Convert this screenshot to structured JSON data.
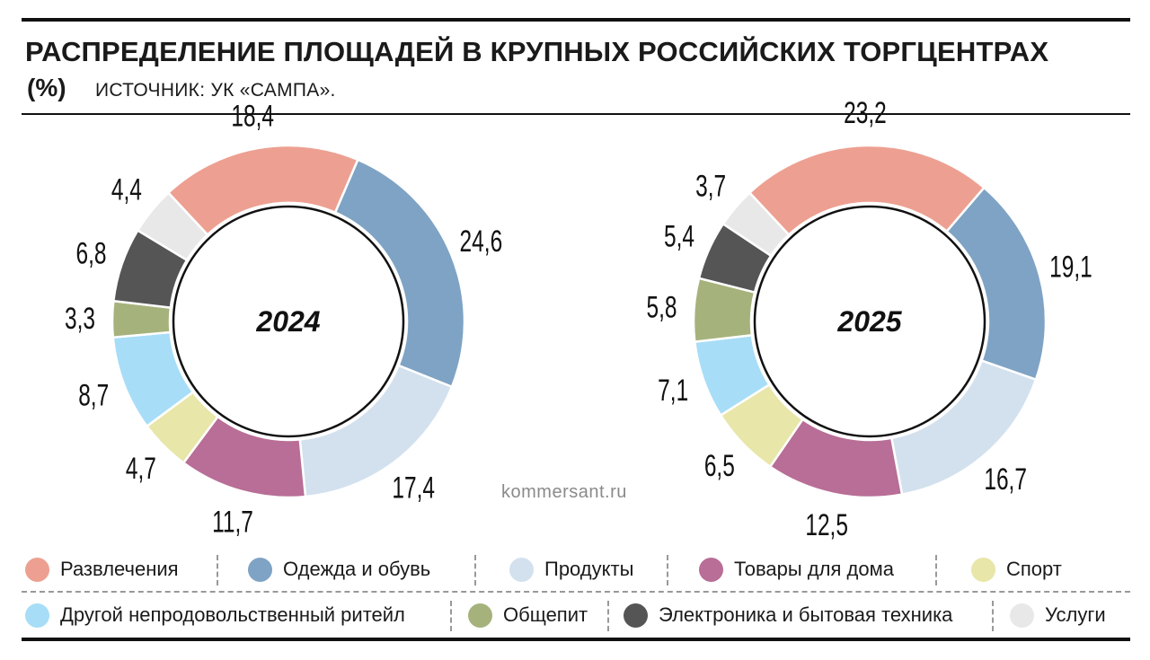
{
  "title": "РАСПРЕДЕЛЕНИЕ ПЛОЩАДЕЙ В КРУПНЫХ РОССИЙСКИХ ТОРГЦЕНТРАХ",
  "unit": "(%)",
  "source": "ИСТОЧНИК: УК «САМПА».",
  "watermark": "kommersant.ru",
  "categories": [
    "Развлечения",
    "Одежда и обувь",
    "Продукты",
    "Товары для дома",
    "Спорт",
    "Другой непродовольственный ритейл",
    "Общепит",
    "Электроника и бытовая техника",
    "Услуги"
  ],
  "colors": [
    "#EDA091",
    "#7FA3C4",
    "#D3E1EE",
    "#B86E96",
    "#E8E6A8",
    "#A7DDF7",
    "#A6B27C",
    "#555555",
    "#E8E8E8"
  ],
  "chart_data": [
    {
      "type": "pie",
      "title": "2024",
      "categories": [
        "Развлечения",
        "Одежда и обувь",
        "Продукты",
        "Товары для дома",
        "Спорт",
        "Другой непродовольственный ритейл",
        "Общепит",
        "Электроника и бытовая техника",
        "Услуги"
      ],
      "values": [
        18.4,
        24.6,
        17.4,
        11.7,
        4.7,
        8.7,
        3.3,
        6.8,
        4.4
      ],
      "labels": [
        "18,4",
        "24,6",
        "17,4",
        "11,7",
        "4,7",
        "8,7",
        "3,3",
        "6,8",
        "4,4"
      ]
    },
    {
      "type": "pie",
      "title": "2025",
      "categories": [
        "Развлечения",
        "Одежда и обувь",
        "Продукты",
        "Товары для дома",
        "Спорт",
        "Другой непродовольственный ритейл",
        "Общепит",
        "Электроника и бытовая техника",
        "Услуги"
      ],
      "values": [
        23.2,
        19.1,
        16.7,
        12.5,
        6.5,
        7.1,
        5.8,
        5.4,
        3.7
      ],
      "labels": [
        "23,2",
        "19,1",
        "16,7",
        "12,5",
        "6,5",
        "7,1",
        "5,8",
        "5,4",
        "3,7"
      ]
    }
  ]
}
